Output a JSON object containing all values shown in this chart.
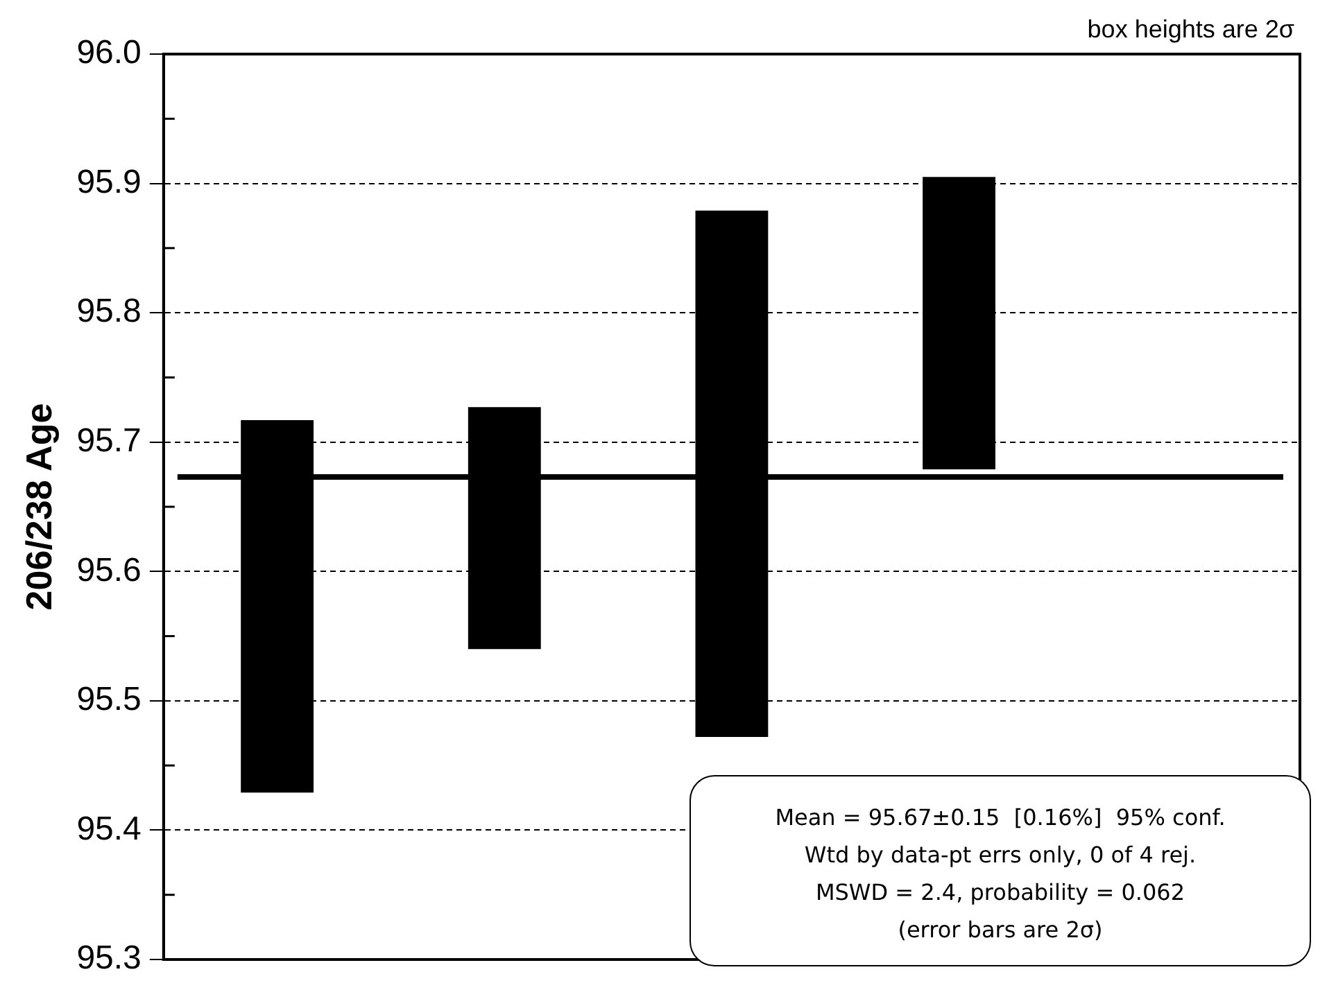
{
  "chart_data": {
    "type": "bar",
    "ylabel": "206/238 Age",
    "categories": [
      null,
      null,
      null,
      null,
      null
    ],
    "base": [
      95.429,
      95.54,
      95.472,
      95.679,
      null
    ],
    "values": [
      0.288,
      0.187,
      0.407,
      0.226,
      null
    ],
    "color": "#000000",
    "ylim": [
      95.3,
      96.0
    ],
    "yticks": [
      95.3,
      {
        "value": 95.35,
        "label": null
      },
      95.4,
      {
        "value": 95.45,
        "label": null
      },
      95.5,
      {
        "value": 95.55,
        "label": null
      },
      95.6,
      {
        "value": 95.65,
        "label": null
      },
      95.7,
      {
        "value": 95.75,
        "label": null
      },
      95.8,
      {
        "value": 95.85,
        "label": null
      },
      95.9,
      {
        "value": 95.95,
        "label": null
      },
      {
        "value": 96.0,
        "label": "96.0"
      }
    ],
    "grid": "y",
    "line_style": "dashed",
    "tick_labels": "y",
    "legend": false,
    "ref_lines": [
      {
        "axis": "y",
        "value": 95.673,
        "color": "#000000",
        "line_style": "solid"
      }
    ],
    "annotations": [
      "box heights are 2σ",
      "Mean = 95.67±0.15  [0.16%]  95% conf.\nWtd by data-pt errs only, 0 of 4 rej.\nMSWD = 2.4, probability = 0.062\n(error bars are 2σ)"
    ]
  }
}
